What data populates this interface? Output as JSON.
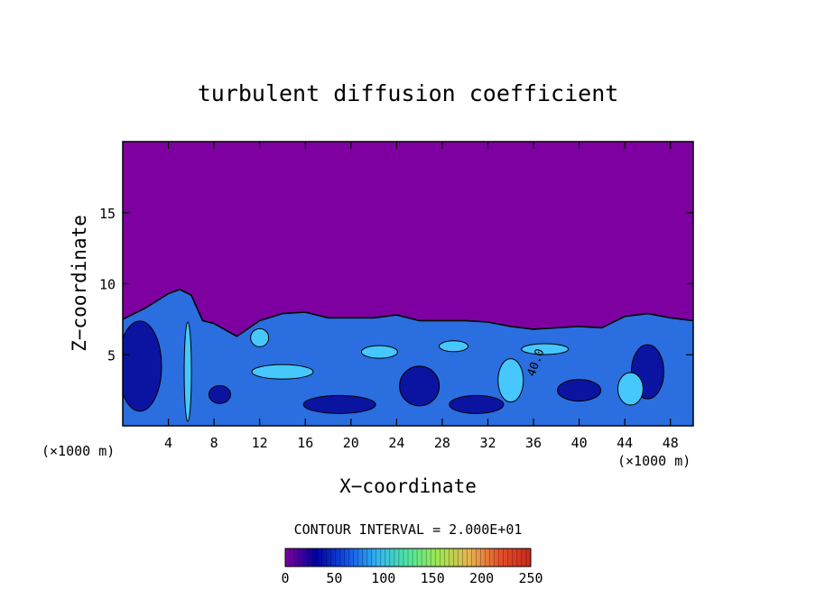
{
  "chart_data": {
    "type": "heatmap",
    "title": "turbulent diffusion coefficient",
    "xlabel": "X−coordinate",
    "ylabel": "Z−coordinate",
    "x_unit_left": "(×1000 m)",
    "x_unit_right": "(×1000 m)",
    "xlim": [
      0,
      50
    ],
    "ylim": [
      0,
      20
    ],
    "x_ticks": [
      4,
      8,
      12,
      16,
      20,
      24,
      28,
      32,
      36,
      40,
      44,
      48
    ],
    "y_ticks": [
      5,
      10,
      15
    ],
    "contour_interval_text": "CONTOUR INTERVAL = 2.000E+01",
    "contour_label": "40.0",
    "colorbar": {
      "range": [
        0,
        250
      ],
      "ticks": [
        0,
        50,
        100,
        150,
        200,
        250
      ],
      "colors": [
        "#7f00a0",
        "#0000a0",
        "#1450e6",
        "#32b4f0",
        "#50e6a0",
        "#a0e650",
        "#e6b450",
        "#e65028",
        "#c8281e"
      ]
    },
    "colors": {
      "background_field": "#7f00a0",
      "turbulent_layer": "#2a6ee0",
      "strong_eddies": "#46c8ff",
      "weak_region": "#0a14a0",
      "contour_line": "#000000"
    },
    "boundary_layer_top": {
      "x": [
        0,
        2,
        4,
        5,
        6,
        7,
        8,
        10,
        12,
        14,
        16,
        18,
        20,
        22,
        24,
        26,
        28,
        30,
        32,
        34,
        36,
        38,
        40,
        42,
        44,
        46,
        48,
        50
      ],
      "z": [
        7.5,
        8.3,
        9.3,
        9.6,
        9.2,
        7.4,
        7.2,
        6.3,
        7.4,
        7.9,
        8.0,
        7.6,
        7.6,
        7.6,
        7.8,
        7.4,
        7.4,
        7.4,
        7.3,
        7.0,
        6.8,
        6.9,
        7.0,
        6.9,
        7.7,
        7.9,
        7.6,
        7.4
      ]
    }
  }
}
